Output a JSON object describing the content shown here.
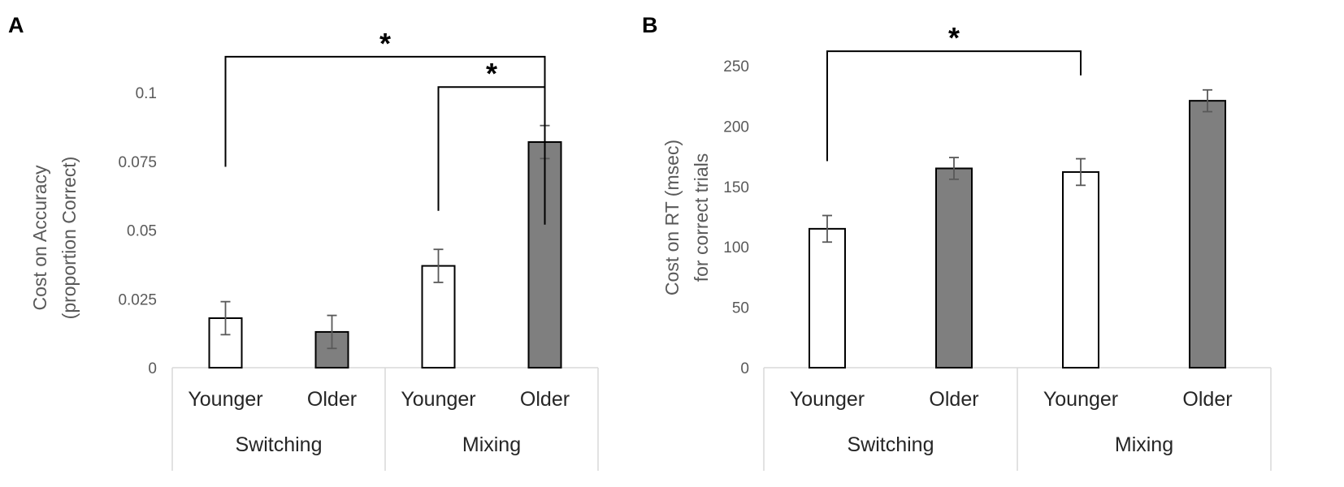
{
  "chart_data": [
    {
      "type": "bar",
      "panel_label": "A",
      "ylabel_line1": "Cost on Accuracy",
      "ylabel_line2": "(proportion Correct)",
      "ylim": [
        0,
        0.1
      ],
      "yticks": [
        0,
        0.025,
        0.05,
        0.075,
        0.1
      ],
      "ytick_labels": [
        "0",
        "0.025",
        "0.05",
        "0.075",
        "0.1"
      ],
      "categories": [
        "Younger",
        "Older",
        "Younger",
        "Older"
      ],
      "groups": [
        "Switching",
        "Mixing"
      ],
      "values": [
        0.018,
        0.013,
        0.037,
        0.082
      ],
      "errors": [
        0.006,
        0.006,
        0.006,
        0.006
      ],
      "fills": [
        "#ffffff",
        "#7f7f7f",
        "#ffffff",
        "#7f7f7f"
      ],
      "significance": [
        {
          "from": 0,
          "to": 3,
          "label": "*",
          "left_bottom": 0.073,
          "right_bottom": 0.052,
          "top": 0.113
        },
        {
          "from": 2,
          "to": 3,
          "label": "*",
          "left_bottom": 0.057,
          "right_bottom": 0.09,
          "top": 0.102
        }
      ]
    },
    {
      "type": "bar",
      "panel_label": "B",
      "ylabel_line1": "Cost on RT (msec)",
      "ylabel_line2": "for correct trials",
      "ylim": [
        0,
        250
      ],
      "yticks": [
        0,
        50,
        100,
        150,
        200,
        250
      ],
      "ytick_labels": [
        "0",
        "50",
        "100",
        "150",
        "200",
        "250"
      ],
      "categories": [
        "Younger",
        "Older",
        "Younger",
        "Older"
      ],
      "groups": [
        "Switching",
        "Mixing"
      ],
      "values": [
        115,
        165,
        162,
        221
      ],
      "errors": [
        11,
        9,
        11,
        9
      ],
      "fills": [
        "#ffffff",
        "#7f7f7f",
        "#ffffff",
        "#7f7f7f"
      ],
      "significance": [
        {
          "from": 0,
          "to": 2,
          "label": "*",
          "left_bottom": 171,
          "right_bottom": 242,
          "top": 262
        }
      ]
    }
  ]
}
